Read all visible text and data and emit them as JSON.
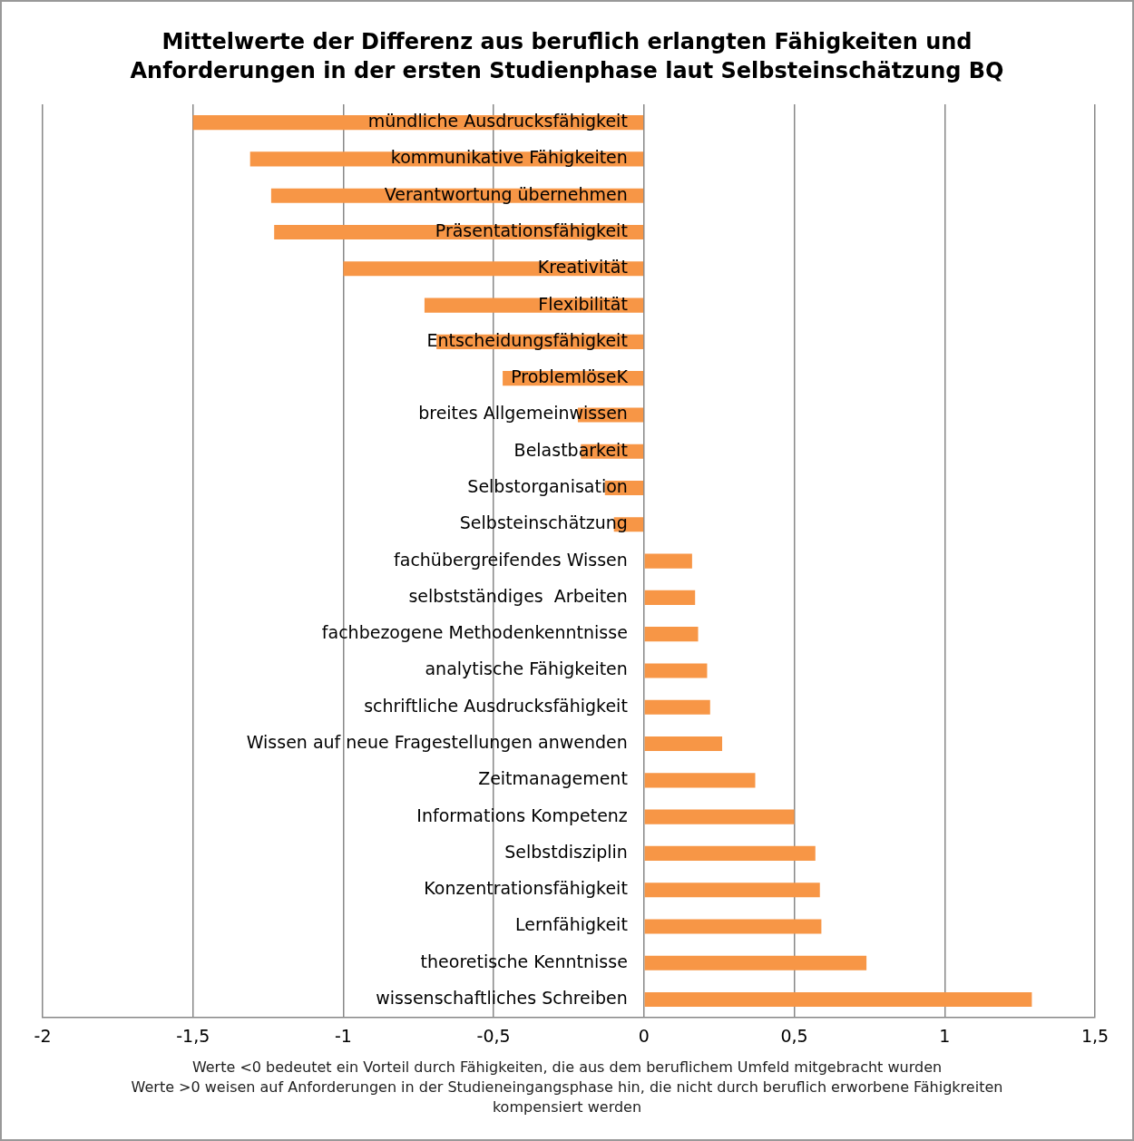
{
  "chart_data": {
    "type": "bar",
    "orientation": "horizontal",
    "title": "Mittelwerte der Differenz aus beruflich erlangten Fähigkeiten und Anforderungen in der ersten Studienphase laut Selbsteinschätzung BQ",
    "categories": [
      "mündliche Ausdrucksfähigkeit",
      "kommunikative Fähigkeiten",
      "Verantwortung übernehmen",
      "Präsentationsfähigkeit",
      "Kreativität",
      "Flexibilität",
      "Entscheidungsfähigkeit",
      "ProblemlöseK",
      "breites Allgemeinwissen",
      "Belastbarkeit",
      "Selbstorganisation",
      "Selbsteinschätzung",
      "fachübergreifendes Wissen",
      "selbstständiges  Arbeiten",
      "fachbezogene Methodenkenntnisse",
      "analytische Fähigkeiten",
      "schriftliche Ausdrucksfähigkeit",
      "Wissen auf neue Fragestellungen anwenden",
      "Zeitmanagement",
      "Informations Kompetenz",
      "Selbstdisziplin",
      "Konzentrationsfähigkeit",
      "Lernfähigkeit",
      "theoretische Kenntnisse",
      "wissenschaftliches Schreiben"
    ],
    "values": [
      -1.5,
      -1.31,
      -1.24,
      -1.23,
      -1.0,
      -0.73,
      -0.69,
      -0.47,
      -0.22,
      -0.21,
      -0.13,
      -0.1,
      0.16,
      0.17,
      0.18,
      0.21,
      0.22,
      0.26,
      0.37,
      0.5,
      0.57,
      0.585,
      0.59,
      0.74,
      1.29
    ],
    "color": "#f79646",
    "xlim": [
      -2,
      1.5
    ],
    "xticks": [
      -2,
      {
        "value": -1.5,
        "label": "-1,5"
      },
      -1,
      {
        "value": -0.5,
        "label": "-0,5"
      },
      0,
      {
        "value": 0.5,
        "label": "0,5"
      },
      1,
      {
        "value": 1.5,
        "label": "1,5"
      }
    ],
    "grid": "x",
    "legend": false,
    "annotations": [
      "Werte <0 bedeutet ein Vorteil durch Fähigkeiten, die aus dem beruflichem Umfeld mitgebracht wurden",
      "Werte >0 weisen auf Anforderungen in der Studieneingangsphase hin, die nicht durch beruflich erworbene Fähigkreiten kompensiert werden"
    ]
  }
}
